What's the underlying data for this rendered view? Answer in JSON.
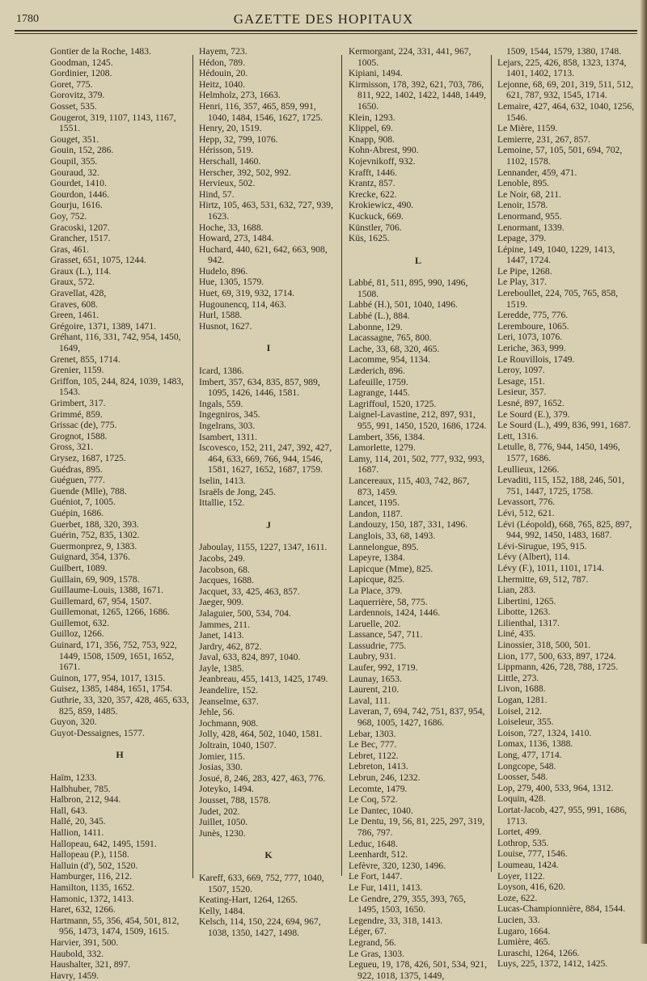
{
  "header": {
    "page_number": "1780",
    "title": "GAZETTE DES HOPITAUX"
  },
  "columns": [
    [
      "Gontier de la Roche, 1483.",
      "Goodman, 1245.",
      "Gordinier, 1208.",
      "Goret, 775.",
      "Gorovitz, 379.",
      "Gosset, 535.",
      "Gougerot, 319, 1107, 1143, 1167, 1551.",
      "Gouget, 351.",
      "Gouin, 152, 286.",
      "Goupil, 355.",
      "Gouraud, 32.",
      "Gourdet, 1410.",
      "Gourdon, 1446.",
      "Gourju, 1616.",
      "Goy, 752.",
      "Gracoski, 1207.",
      "Grancher, 1517.",
      "Gras, 461.",
      "Grasset, 651, 1075, 1244.",
      "Graux (L.), 114.",
      "Graux, 572.",
      "Gravellat, 428,",
      "Graves, 608.",
      "Green, 1461.",
      "Grégoire, 1371, 1389, 1471.",
      "Gréhant, 116, 331, 742, 954, 1450, 1649,",
      "Grenet, 855, 1714.",
      "Grenier, 1159.",
      "Griffon, 105, 244, 824, 1039, 1483, 1543.",
      "Grimbert, 317.",
      "Grimmé, 859.",
      "Grissac (de), 775.",
      "Grognot, 1588.",
      "Gross, 321.",
      "Grysez, 1687, 1725.",
      "Guédras, 895.",
      "Guéguen, 777.",
      "Guende (Mlle), 788.",
      "Guéniot, 7, 1005.",
      "Guépin, 1686.",
      "Guerbet, 188, 320, 393.",
      "Guérin, 752, 835, 1302.",
      "Guermonprez, 9, 1383.",
      "Guignard, 354, 1376.",
      "Guilbert, 1089.",
      "Guillain, 69, 909, 1578.",
      "Guillaume-Louis, 1388, 1671.",
      "Guillemard, 67, 954, 1507.",
      "Guillemonat, 1265, 1266, 1686.",
      "Guillemot, 632.",
      "Guilloz, 1266.",
      "Guinard, 171, 356, 752, 753, 922, 1449, 1508, 1509, 1651, 1652, 1671.",
      "Guinon, 177, 954, 1017, 1315.",
      "Guisez, 1385, 1484, 1651, 1754.",
      "Guthrie, 33, 320, 357, 428, 465, 633, 825, 859, 1485.",
      "Guyon, 320.",
      "Guyot-Dessaignes, 1577.",
      {
        "section": "H"
      },
      "Haïm, 1233.",
      "Halbhuber, 785.",
      "Halbron, 212, 944.",
      "Hall, 643.",
      "Hallé, 20, 345.",
      "Hallion, 1411.",
      "Hallopeau, 642, 1495, 1591.",
      "Hallopeau (P.), 1158.",
      "Halluin (d'), 502, 1520.",
      "Hamburger, 116, 212.",
      "Hamilton, 1135, 1652.",
      "Hamonic, 1372, 1413.",
      "Haret, 632, 1266.",
      "Hartmann, 55, 356, 454, 501, 812, 956, 1473, 1474, 1509, 1615.",
      "Harvier, 391, 500.",
      "Haubold, 332.",
      "Haushalter, 321, 897.",
      "Havry, 1459."
    ],
    [
      "Hayem, 723.",
      "Hédon, 789.",
      "Hédouin, 20.",
      "Heitz, 1040.",
      "Helmholz, 273, 1663.",
      "Henri, 116, 357, 465, 859, 991, 1040, 1484, 1546, 1627, 1725.",
      "Henry, 20, 1519.",
      "Hepp, 32, 799, 1076.",
      "Hérisson, 519.",
      "Herschall, 1460.",
      "Herscher, 392, 502, 992.",
      "Hervieux, 502.",
      "Hind, 57.",
      "Hirtz, 105, 463, 531, 632, 727, 939, 1623.",
      "Hoche, 33, 1688.",
      "Howard, 273, 1484.",
      "Huchard, 440, 621, 642, 663, 908, 942.",
      "Hudelo, 896.",
      "Hue, 1305, 1579.",
      "Huet, 69, 319, 932, 1714.",
      "Hugounencq, 114, 463.",
      "Hurl, 1588.",
      "Husnot, 1627.",
      {
        "section": "I"
      },
      "Icard, 1386.",
      "Imbert, 357, 634, 835, 857, 989, 1095, 1426, 1446, 1581.",
      "Ingals, 559.",
      "Ingegniros, 345.",
      "Ingelrans, 303.",
      "Isambert, 1311.",
      "Iscovesco, 152, 211, 247, 392, 427, 464, 633, 669, 766, 944, 1546, 1581, 1627, 1652, 1687, 1759.",
      "Iselin, 1413.",
      "Israëls de Jong, 245.",
      "Ittallie, 152.",
      {
        "section": "J"
      },
      "Jaboulay, 1155, 1227, 1347, 1611.",
      "Jacobs, 249.",
      "Jacobson, 68.",
      "Jacques, 1688.",
      "Jacquet, 33, 425, 463, 857.",
      "Jaeger, 909.",
      "Jalaguier, 500, 534, 704.",
      "Jammes, 211.",
      "Janet, 1413.",
      "Jardry, 462, 872.",
      "Javal, 633, 824, 897, 1040.",
      "Jayle, 1385.",
      "Jeanbreau, 455, 1413, 1425, 1749.",
      "Jeandelire, 152.",
      "Jeanselme, 637.",
      "Jehle, 56.",
      "Jochmann, 908.",
      "Jolly, 428, 464, 502, 1040, 1581.",
      "Joltrain, 1040, 1507.",
      "Jomier, 115.",
      "Josias, 330.",
      "Josué, 8, 246, 283, 427, 463, 776.",
      "Joteyko, 1494.",
      "Jousset, 788, 1578.",
      "Judet, 202.",
      "Juillet, 1050.",
      "Junès, 1230.",
      {
        "section": "K"
      },
      "Kareff, 633, 669, 752, 777, 1040, 1507, 1520.",
      "Keating-Hart, 1264, 1265.",
      "Kelly, 1484.",
      "Kelsch, 114, 150, 224, 694, 967, 1038, 1350, 1427, 1498."
    ],
    [
      "Kermorgant, 224, 331, 441, 967, 1005.",
      "Kipiani, 1494.",
      "Kirmisson, 178, 392, 621, 703, 786, 811, 922, 1402, 1422, 1448, 1449, 1650.",
      "Klein, 1293.",
      "Klippel, 69.",
      "Knapp, 908.",
      "Kohn-Abrest, 990.",
      "Kojevnikoff, 932.",
      "Krafft, 1446.",
      "Krantz, 857.",
      "Krecke, 622.",
      "Krokiewicz, 490.",
      "Kuckuck, 669.",
      "Künstler, 706.",
      "Küs, 1625.",
      {
        "section": "L"
      },
      "Labbé, 81, 511, 895, 990, 1496, 1508.",
      "Labbé (H.), 501, 1040, 1496.",
      "Labbé (L.), 884.",
      "Labonne, 129.",
      "Lacassagne, 765, 800.",
      "Lache, 33, 68, 320, 465.",
      "Lacomme, 954, 1134.",
      "Læderich, 896.",
      "Lafeuille, 1759.",
      "Lagrange, 1445.",
      "Lagriffoul, 1520, 1725.",
      "Laignel-Lavastine, 212, 897, 931, 955, 991, 1450, 1520, 1686, 1724.",
      "Lambert, 356, 1384.",
      "Lamorlette, 1279.",
      "Lamy, 114, 201, 502, 777, 932, 993, 1687.",
      "Lancereaux, 115, 403, 742, 867, 873, 1459.",
      "Lancet, 1195.",
      "Landon, 1187.",
      "Landouzy, 150, 187, 331, 1496.",
      "Langlois, 33, 68, 1493.",
      "Lannelongue, 895.",
      "Lapeyre, 1384.",
      "Lapicque (Mme), 825.",
      "Lapicque, 825.",
      "La Place, 379.",
      "Laquerrière, 58, 775.",
      "Lardennois, 1424, 1446.",
      "Laruelle, 202.",
      "Lassance, 547, 711.",
      "Lassudrie, 775.",
      "Laubry, 931.",
      "Laufer, 992, 1719.",
      "Launay, 1653.",
      "Laurent, 210.",
      "Laval, 111.",
      "Laveran, 7, 694, 742, 751, 837, 954, 968, 1005, 1427, 1686.",
      "Lebar, 1303.",
      "Le Bec, 777.",
      "Lebret, 1122.",
      "Lebreton, 1413.",
      "Lebrun, 246, 1232.",
      "Lecomte, 1479.",
      "Le Coq, 572.",
      "Le Dantec, 1040.",
      "Le Dentu, 19, 56, 81, 225, 297, 319, 786, 797.",
      "Leduc, 1648.",
      "Leenhardt, 512.",
      "Lefèvre, 320, 1230, 1496.",
      "Le Fort, 1447.",
      "Le Fur, 1411, 1413.",
      "Le Gendre, 279, 355, 393, 765, 1495, 1503, 1650.",
      "Legendre, 33, 318, 1413.",
      "Léger, 67.",
      "Legrand, 56.",
      "Le Gras, 1303.",
      "Legueu, 19, 178, 426, 501, 534, 921, 922, 1018, 1375, 1449,"
    ],
    [
      {
        "cont": "1509, 1544, 1579, 1380, 1748."
      },
      "Lejars, 225, 426, 858, 1323, 1374, 1401, 1402, 1713.",
      "Lejonne, 68, 69, 201, 319, 511, 512, 621, 787, 932, 1545, 1714.",
      "Lemaire, 427, 464, 632, 1040, 1256, 1546.",
      "Le Mière, 1159.",
      "Lemierre, 231, 267, 857.",
      "Lemoine, 57, 105, 501, 694, 702, 1102, 1578.",
      "Lennander, 459, 471.",
      "Lenoble, 895.",
      "Le Noir, 68, 211.",
      "Lenoir, 1578.",
      "Lenormand, 955.",
      "Lenormant, 1339.",
      "Lepage, 379.",
      "Lépine, 149, 1040, 1229, 1413, 1447, 1724.",
      "Le Pipe, 1268.",
      "Le Play, 317.",
      "Lereboullet, 224, 705, 765, 858, 1519.",
      "Leredde, 775, 776.",
      "Leremboure, 1065.",
      "Leri, 1073, 1076.",
      "Leriche, 363, 999.",
      "Le Rouvillois, 1749.",
      "Leroy, 1097.",
      "Lesage, 151.",
      "Lesieur, 357.",
      "Lesné, 897, 1652.",
      "Le Sourd (E.), 379.",
      "Le Sourd (L.), 499, 836, 991, 1687.",
      "Lett, 1316.",
      "Letulle, 8, 776, 944, 1450, 1496, 1577, 1686.",
      "Leullieux, 1266.",
      "Levaditi, 115, 152, 188, 246, 501, 751, 1447, 1725, 1758.",
      "Levassort, 776.",
      "Lévi, 512, 621.",
      "Lévi (Léopold), 668, 765, 825, 897, 944, 992, 1450, 1483, 1687.",
      "Lévi-Sirugue, 195, 915.",
      "Lévy (Albert), 114.",
      "Lévy (F.), 1011, 1101, 1714.",
      "Lhermitte, 69, 512, 787.",
      "Lian, 283.",
      "Libertini, 1265.",
      "Libotte, 1263.",
      "Lilienthal, 1317.",
      "Liné, 435.",
      "Linossier, 318, 500, 501.",
      "Lion, 177, 500, 633, 897, 1724.",
      "Lippmann, 426, 728, 788, 1725.",
      "Little, 273.",
      "Livon, 1688.",
      "Logan, 1281.",
      "Loisel, 212.",
      "Loiseleur, 355.",
      "Loison, 727, 1324, 1410.",
      "Lomax, 1136, 1388.",
      "Long, 477, 1714.",
      "Longcope, 548.",
      "Loosser, 548.",
      "Lop, 279, 400, 533, 964, 1312.",
      "Loquin, 428.",
      "Lortat-Jacob, 427, 955, 991, 1686, 1713.",
      "Lortet, 499.",
      "Lothrop, 535.",
      "Louise, 777, 1546.",
      "Loumeau, 1424.",
      "Loyer, 1122.",
      "Loyson, 416, 620.",
      "Loze, 622.",
      "Lucas-Championnière, 884, 1544.",
      "Lucien, 33.",
      "Lugaro, 1664.",
      "Lumière, 465.",
      "Luraschi, 1264, 1266.",
      "Luys, 225, 1372, 1412, 1425."
    ]
  ]
}
